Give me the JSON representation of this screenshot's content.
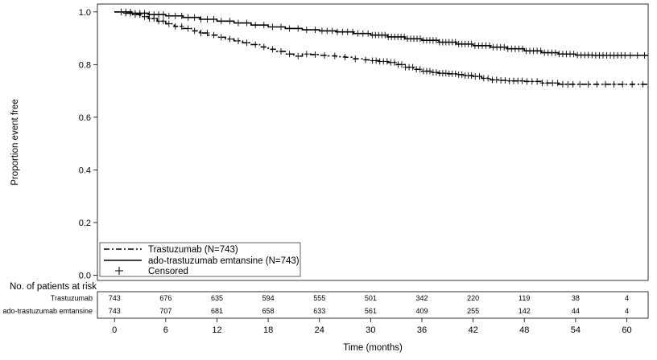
{
  "chart_data": {
    "type": "line",
    "title": "",
    "xlabel": "Time (months)",
    "ylabel": "Proportion event free",
    "xlim": [
      -2,
      62.5
    ],
    "ylim": [
      -0.02,
      1.03
    ],
    "xticks": [
      0,
      6,
      12,
      18,
      24,
      30,
      36,
      42,
      48,
      54,
      60
    ],
    "yticks": [
      "0.0",
      "0.2",
      "0.4",
      "0.6",
      "0.8",
      "1.0"
    ],
    "legend_position": "bottom-left",
    "series": [
      {
        "name": "Trastuzumab (N=743)",
        "style": "dash-dot",
        "points": [
          [
            0,
            1.0
          ],
          [
            1,
            0.995
          ],
          [
            2,
            0.99
          ],
          [
            3,
            0.982
          ],
          [
            4,
            0.975
          ],
          [
            5,
            0.965
          ],
          [
            6,
            0.955
          ],
          [
            7,
            0.945
          ],
          [
            8,
            0.937
          ],
          [
            9,
            0.928
          ],
          [
            10,
            0.92
          ],
          [
            11,
            0.912
          ],
          [
            12,
            0.904
          ],
          [
            13,
            0.897
          ],
          [
            14,
            0.89
          ],
          [
            15,
            0.883
          ],
          [
            16,
            0.876
          ],
          [
            17,
            0.867
          ],
          [
            18,
            0.858
          ],
          [
            19,
            0.85
          ],
          [
            20,
            0.84
          ],
          [
            21,
            0.832
          ],
          [
            22,
            0.84
          ],
          [
            23,
            0.838
          ],
          [
            24,
            0.835
          ],
          [
            25,
            0.833
          ],
          [
            26,
            0.83
          ],
          [
            27,
            0.828
          ],
          [
            28,
            0.822
          ],
          [
            29,
            0.818
          ],
          [
            30,
            0.815
          ],
          [
            31,
            0.812
          ],
          [
            32,
            0.808
          ],
          [
            33,
            0.8
          ],
          [
            34,
            0.79
          ],
          [
            35,
            0.782
          ],
          [
            36,
            0.775
          ],
          [
            37,
            0.77
          ],
          [
            38,
            0.767
          ],
          [
            39,
            0.765
          ],
          [
            40,
            0.762
          ],
          [
            41,
            0.758
          ],
          [
            42,
            0.755
          ],
          [
            43,
            0.748
          ],
          [
            44,
            0.742
          ],
          [
            45,
            0.74
          ],
          [
            46,
            0.738
          ],
          [
            48,
            0.736
          ],
          [
            50,
            0.73
          ],
          [
            52,
            0.725
          ],
          [
            54,
            0.725
          ],
          [
            56,
            0.725
          ],
          [
            58,
            0.725
          ],
          [
            60,
            0.725
          ],
          [
            62.5,
            0.725
          ]
        ],
        "censored_ranges": [
          [
            0.5,
            6,
            10
          ],
          [
            6,
            12,
            8
          ],
          [
            12,
            18,
            6
          ],
          [
            18,
            24,
            6
          ],
          [
            24,
            30,
            5
          ],
          [
            30,
            36,
            14
          ],
          [
            36,
            42,
            16
          ],
          [
            42,
            48,
            12
          ],
          [
            48,
            54,
            10
          ],
          [
            54,
            60,
            6
          ],
          [
            60,
            62.5,
            2
          ]
        ]
      },
      {
        "name": "ado-trastuzumab emtansine (N=743)",
        "style": "solid",
        "points": [
          [
            0,
            1.0
          ],
          [
            2,
            0.995
          ],
          [
            4,
            0.99
          ],
          [
            6,
            0.985
          ],
          [
            8,
            0.979
          ],
          [
            10,
            0.972
          ],
          [
            12,
            0.965
          ],
          [
            14,
            0.958
          ],
          [
            16,
            0.95
          ],
          [
            18,
            0.943
          ],
          [
            20,
            0.937
          ],
          [
            22,
            0.932
          ],
          [
            24,
            0.928
          ],
          [
            26,
            0.924
          ],
          [
            28,
            0.918
          ],
          [
            30,
            0.912
          ],
          [
            32,
            0.905
          ],
          [
            34,
            0.898
          ],
          [
            36,
            0.892
          ],
          [
            38,
            0.885
          ],
          [
            40,
            0.878
          ],
          [
            42,
            0.872
          ],
          [
            44,
            0.866
          ],
          [
            46,
            0.86
          ],
          [
            48,
            0.852
          ],
          [
            50,
            0.845
          ],
          [
            52,
            0.84
          ],
          [
            54,
            0.836
          ],
          [
            56,
            0.835
          ],
          [
            58,
            0.835
          ],
          [
            60,
            0.835
          ],
          [
            62.5,
            0.835
          ]
        ],
        "censored_ranges": [
          [
            0.5,
            6,
            10
          ],
          [
            6,
            12,
            8
          ],
          [
            12,
            18,
            6
          ],
          [
            18,
            24,
            6
          ],
          [
            24,
            30,
            10
          ],
          [
            30,
            36,
            16
          ],
          [
            36,
            42,
            16
          ],
          [
            42,
            48,
            14
          ],
          [
            48,
            54,
            14
          ],
          [
            54,
            60,
            14
          ],
          [
            60,
            62.5,
            3
          ]
        ]
      }
    ],
    "legend": {
      "entries": [
        "Trastuzumab (N=743)",
        "ado-trastuzumab emtansine (N=743)",
        "Censored"
      ]
    },
    "risk_table": {
      "title": "No. of patients at risk",
      "rows": [
        {
          "label": "Trastuzumab",
          "values": [
            "743",
            "676",
            "635",
            "594",
            "555",
            "501",
            "342",
            "220",
            "119",
            "38",
            "4"
          ]
        },
        {
          "label": "ado-trastuzumab emtansine",
          "values": [
            "743",
            "707",
            "681",
            "658",
            "633",
            "561",
            "409",
            "255",
            "142",
            "44",
            "4"
          ]
        }
      ]
    }
  }
}
